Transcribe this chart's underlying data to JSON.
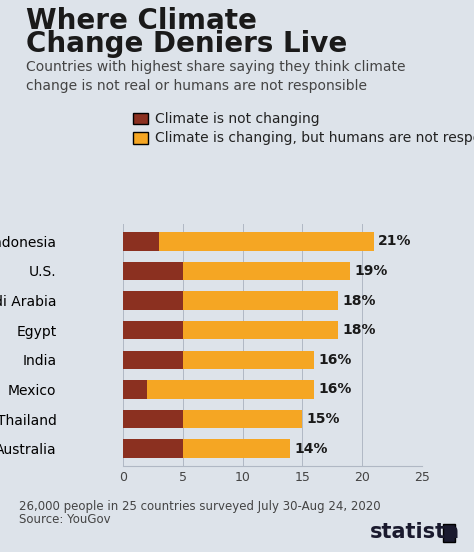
{
  "title_line1": "Where Climate",
  "title_line2": "Change Deniers Live",
  "subtitle": "Countries with highest share saying they think climate\nchange is not real or humans are not responsible",
  "legend1_label": "Climate is not changing",
  "legend2_label": "Climate is changing, but humans are not responsible",
  "footnote_line1": "26,000 people in 25 countries surveyed July 30-Aug 24, 2020",
  "footnote_line2": "Source: YouGov",
  "categories": [
    "Indonesia",
    "U.S.",
    "Saudi Arabia",
    "Egypt",
    "India",
    "Mexico",
    "Thailand",
    "Australia"
  ],
  "not_changing": [
    3,
    5,
    5,
    5,
    5,
    2,
    5,
    5
  ],
  "not_responsible": [
    18,
    14,
    13,
    13,
    11,
    14,
    10,
    9
  ],
  "totals": [
    21,
    19,
    18,
    18,
    16,
    16,
    15,
    14
  ],
  "color_not_changing": "#8B3020",
  "color_not_responsible": "#F5A623",
  "background_color": "#DDE3EA",
  "title_color": "#1a1a1a",
  "subtitle_color": "#444444",
  "bar_label_color": "#1a1a1a",
  "accent_bar_color": "#F5A623",
  "statista_color": "#1a1a2e",
  "xlim": [
    0,
    25
  ],
  "xticks": [
    0,
    5,
    10,
    15,
    20,
    25
  ],
  "title_fontsize": 20,
  "subtitle_fontsize": 10,
  "legend_fontsize": 10,
  "bar_label_fontsize": 10,
  "yticklabel_fontsize": 10,
  "tick_fontsize": 9,
  "footnote_fontsize": 8.5,
  "statista_fontsize": 15
}
